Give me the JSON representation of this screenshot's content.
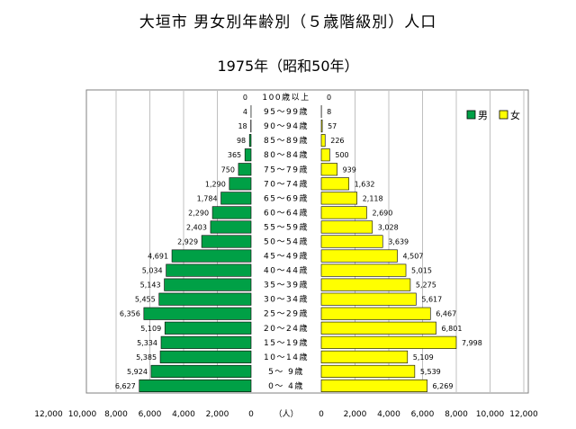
{
  "title": "大垣市 男女別年齢別（５歳階級別）人口",
  "subtitle": "1975年（昭和50年）",
  "colors": {
    "male": "#00a046",
    "female": "#ffff00",
    "grid": "#c0c0c0"
  },
  "chart_data": {
    "type": "bar",
    "orientation": "horizontal-pyramid",
    "categories": [
      "100歳以上",
      "95～99歳",
      "90～94歳",
      "85～89歳",
      "80～84歳",
      "75～79歳",
      "70～74歳",
      "65～69歳",
      "60～64歳",
      "55～59歳",
      "50～54歳",
      "45～49歳",
      "40～44歳",
      "35～39歳",
      "30～34歳",
      "25～29歳",
      "20～24歳",
      "15～19歳",
      "10～14歳",
      "5～ 9歳",
      "0～ 4歳"
    ],
    "series": [
      {
        "name": "男",
        "values": [
          0,
          4,
          18,
          98,
          365,
          750,
          1290,
          1784,
          2290,
          2403,
          2929,
          4691,
          5034,
          5143,
          5455,
          6356,
          5109,
          5334,
          5385,
          5924,
          6627
        ]
      },
      {
        "name": "女",
        "values": [
          0,
          8,
          57,
          226,
          500,
          939,
          1632,
          2118,
          2690,
          3028,
          3639,
          4507,
          5015,
          5275,
          5617,
          6467,
          6801,
          7998,
          5109,
          5539,
          6269
        ]
      }
    ],
    "male_value_labels": [
      "0",
      "4",
      "18",
      "98",
      "365",
      "750",
      "1,290",
      "1,784",
      "2,290",
      "2,403",
      "2,929",
      "4,691",
      "5,034",
      "5,143",
      "5,455",
      "6,356",
      "5,109",
      "5,334",
      "5,385",
      "5,924",
      "6,627"
    ],
    "female_value_labels": [
      "0",
      "8",
      "57",
      "226",
      "500",
      "939",
      "1,632",
      "2,118",
      "2,690",
      "3,028",
      "3,639",
      "4,507",
      "5,015",
      "5,275",
      "5,617",
      "6,467",
      "6,801",
      "7,998",
      "5,109",
      "5,539",
      "6,269"
    ],
    "x_ticks_left": [
      "12,000",
      "10,000",
      "8,000",
      "6,000",
      "4,000",
      "2,000",
      "0"
    ],
    "x_ticks_right": [
      "0",
      "2,000",
      "4,000",
      "6,000",
      "8,000",
      "10,000",
      "12,000"
    ],
    "xlabel": "（人）",
    "xlim": [
      0,
      12000
    ],
    "grid": true,
    "legend": {
      "placement": "top-right",
      "entries": [
        "男",
        "女"
      ]
    }
  }
}
